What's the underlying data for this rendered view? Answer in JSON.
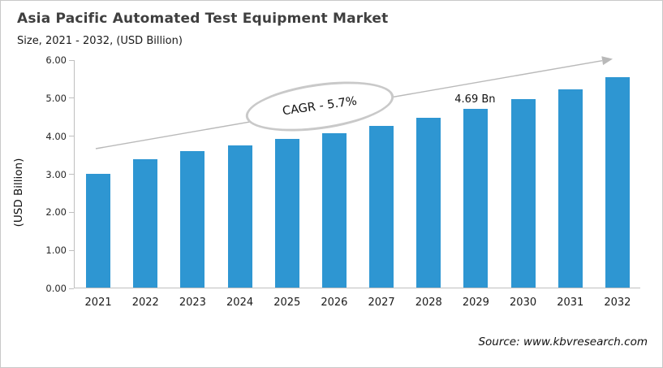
{
  "chart_data": {
    "type": "bar",
    "title": "Asia Pacific Automated Test Equipment Market",
    "subtitle": "Size, 2021 - 2032, (USD Billion)",
    "categories": [
      "2021",
      "2022",
      "2023",
      "2024",
      "2025",
      "2026",
      "2027",
      "2028",
      "2029",
      "2030",
      "2031",
      "2032"
    ],
    "values": [
      3.0,
      3.38,
      3.59,
      3.74,
      3.9,
      4.06,
      4.24,
      4.46,
      4.69,
      4.96,
      5.22,
      5.53
    ],
    "ylabel": "(USD Billion)",
    "xlabel": "",
    "ylim": [
      0,
      6
    ],
    "yticks": [
      "0.00",
      "1.00",
      "2.00",
      "3.00",
      "4.00",
      "5.00",
      "6.00"
    ],
    "grid": false,
    "legend": "none",
    "bar_color": "#2E96D2",
    "axis_color": "#bfbfbf",
    "annotations": {
      "cagr": "CAGR - 5.7%",
      "point_label": {
        "text": "4.69 Bn",
        "category": "2029",
        "value": 4.69
      },
      "trend_arrow": {
        "present": true,
        "color": "#b9b9b9"
      }
    }
  },
  "footer": {
    "source": "Source: www.kbvresearch.com"
  }
}
